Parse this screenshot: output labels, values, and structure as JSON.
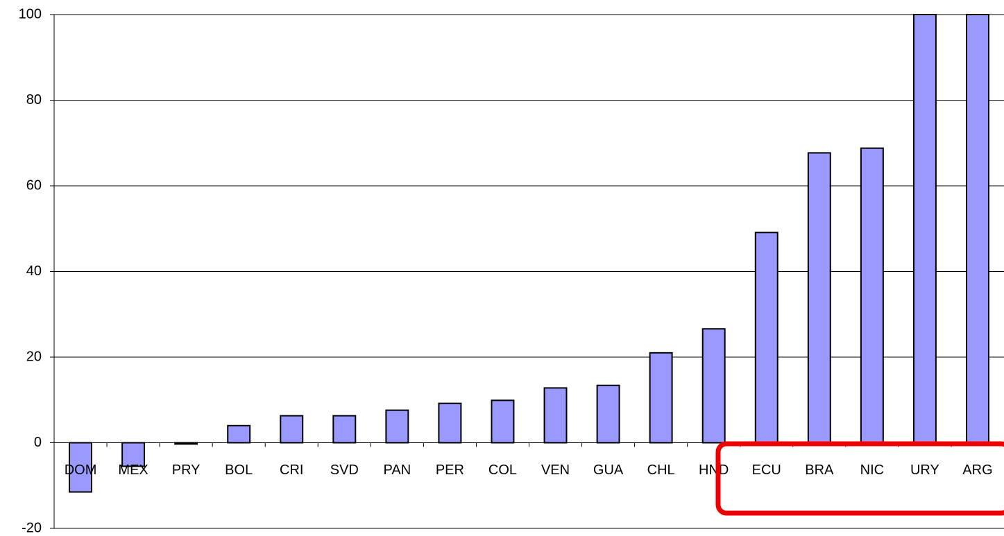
{
  "chart_data": {
    "type": "bar",
    "categories": [
      "DOM",
      "MEX",
      "PRY",
      "BOL",
      "CRI",
      "SVD",
      "PAN",
      "PER",
      "COL",
      "VEN",
      "GUA",
      "CHL",
      "HND",
      "ECU",
      "BRA",
      "NIC",
      "URY",
      "ARG"
    ],
    "values": [
      -11.5,
      -5.5,
      -0.3,
      4.0,
      6.3,
      6.3,
      7.6,
      9.2,
      9.9,
      12.8,
      13.4,
      21.0,
      26.6,
      49.1,
      67.7,
      68.8,
      100,
      100
    ],
    "color": "#9999ff",
    "ylim": [
      -20,
      100
    ],
    "yticks": [
      -20,
      0,
      20,
      40,
      60,
      80,
      100
    ],
    "grid": true
  }
}
